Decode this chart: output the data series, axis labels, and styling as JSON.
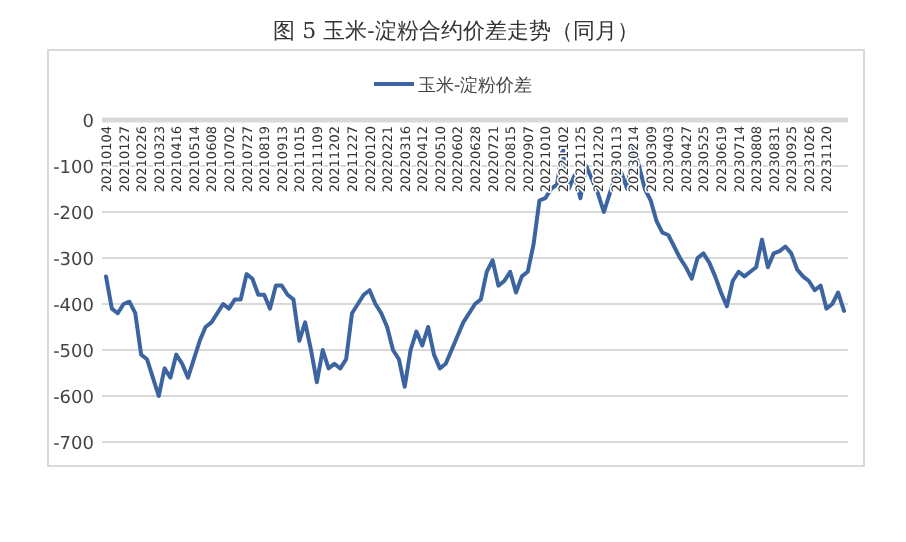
{
  "chart_data": {
    "type": "line",
    "title": "图 5 玉米-淀粉合约价差走势（同月）",
    "categories": [
      "20210104",
      null,
      null,
      "20210127",
      null,
      null,
      "20210226",
      null,
      null,
      "20210323",
      null,
      null,
      "20210416",
      null,
      null,
      "20210514",
      null,
      null,
      "20210608",
      null,
      null,
      "20210702",
      null,
      null,
      "20210727",
      null,
      null,
      "20210819",
      null,
      null,
      "20210913",
      null,
      null,
      "20211015",
      null,
      null,
      "20211109",
      null,
      null,
      "20211202",
      null,
      null,
      "20211227",
      null,
      null,
      "20220120",
      null,
      null,
      "20220221",
      null,
      null,
      "20220316",
      null,
      null,
      "20220412",
      null,
      null,
      "20220510",
      null,
      null,
      "20220602",
      null,
      null,
      "20220628",
      null,
      null,
      "20220721",
      null,
      null,
      "20220815",
      null,
      null,
      "20220907",
      null,
      null,
      "20221010",
      null,
      null,
      "20221102",
      null,
      null,
      "20221125",
      null,
      null,
      "20221220",
      null,
      null,
      "20230113",
      null,
      null,
      "20230214",
      null,
      null,
      "20230309",
      null,
      null,
      "20230403",
      null,
      null,
      "20230427",
      null,
      null,
      "20230525",
      null,
      null,
      "20230619",
      null,
      null,
      "20230714",
      null,
      null,
      "20230808",
      null,
      null,
      "20230831",
      null,
      null,
      "20230925",
      null,
      null,
      "20231026",
      null,
      null,
      "20231120",
      null,
      null,
      null
    ],
    "series": [
      {
        "name": "玉米-淀粉价差",
        "color": "#3b64a0",
        "values": [
          -340,
          -410,
          -420,
          -400,
          -395,
          -420,
          -510,
          -520,
          -560,
          -600,
          -540,
          -560,
          -510,
          -530,
          -560,
          -520,
          -480,
          -450,
          -440,
          -420,
          -400,
          -410,
          -390,
          -390,
          -335,
          -345,
          -380,
          -380,
          -410,
          -360,
          -360,
          -380,
          -390,
          -480,
          -440,
          -500,
          -570,
          -500,
          -540,
          -530,
          -540,
          -520,
          -420,
          -400,
          -380,
          -370,
          -400,
          -420,
          -450,
          -500,
          -520,
          -580,
          -500,
          -460,
          -490,
          -450,
          -510,
          -540,
          -530,
          -500,
          -470,
          -440,
          -420,
          -400,
          -390,
          -330,
          -305,
          -360,
          -350,
          -330,
          -375,
          -340,
          -330,
          -270,
          -175,
          -170,
          -150,
          -140,
          -60,
          -150,
          -120,
          -170,
          -100,
          -130,
          -160,
          -200,
          -160,
          -120,
          -115,
          -150,
          -55,
          -100,
          -150,
          -175,
          -220,
          -245,
          -250,
          -275,
          -300,
          -320,
          -345,
          -300,
          -290,
          -310,
          -340,
          -375,
          -405,
          -350,
          -330,
          -340,
          -330,
          -320,
          -260,
          -320,
          -290,
          -285,
          -275,
          -290,
          -325,
          -340,
          -350,
          -370,
          -360,
          -410,
          -400,
          -375,
          -415
        ]
      }
    ],
    "ylim": [
      -700,
      0
    ],
    "yticks": [
      -700,
      -600,
      -500,
      -400,
      -300,
      -200,
      -100,
      0
    ],
    "grid": "y",
    "legend": "top"
  }
}
